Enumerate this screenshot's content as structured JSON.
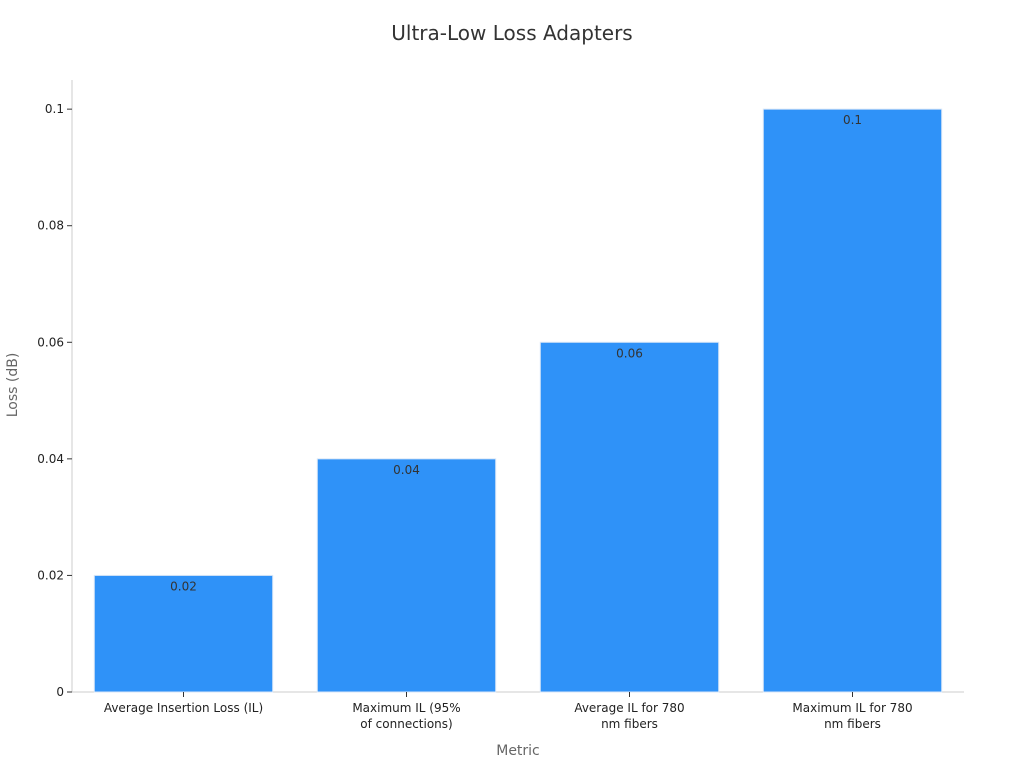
{
  "chart_data": {
    "type": "bar",
    "title": "Ultra-Low Loss Adapters",
    "xlabel": "Metric",
    "ylabel": "Loss (dB)",
    "categories": [
      [
        "Average Insertion Loss (IL)"
      ],
      [
        "Maximum IL (95%",
        "of connections)"
      ],
      [
        "Average IL for 780",
        "nm fibers"
      ],
      [
        "Maximum IL for 780",
        "nm fibers"
      ]
    ],
    "values": [
      0.02,
      0.04,
      0.06,
      0.1
    ],
    "data_labels": [
      "0.02",
      "0.04",
      "0.06",
      "0.1"
    ],
    "ylim": [
      0,
      0.105
    ],
    "yticks": [
      0,
      0.02,
      0.04,
      0.06,
      0.08,
      0.1
    ],
    "ytick_labels": [
      "0",
      "0.02",
      "0.04",
      "0.06",
      "0.08",
      "0.1"
    ],
    "bar_color": "#2f92f8",
    "grid": false,
    "legend": "none"
  }
}
